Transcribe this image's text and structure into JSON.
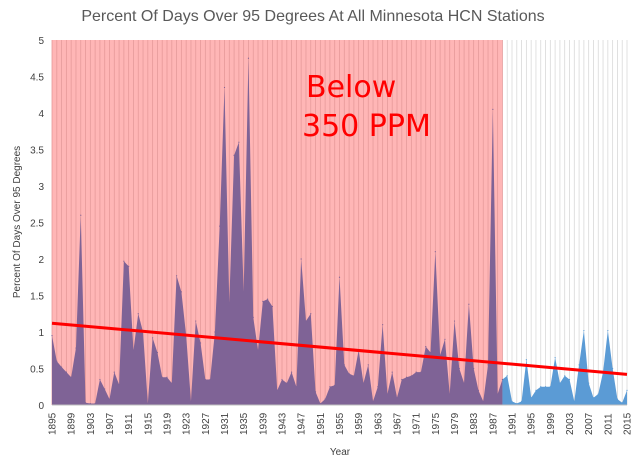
{
  "chart_data": {
    "type": "area",
    "title": "Percent Of Days Over 95 Degrees At All Minnesota HCN Stations",
    "xlabel": "Year",
    "ylabel": "Percent Of Days Over 95 Degrees",
    "ylim": [
      0,
      5
    ],
    "yticks": [
      "0",
      "0.5",
      "1",
      "1.5",
      "2",
      "2.5",
      "3",
      "3.5",
      "4",
      "4.5",
      "5"
    ],
    "xlim": [
      1895,
      2015
    ],
    "xticks": [
      "1895",
      "1899",
      "1903",
      "1907",
      "1911",
      "1915",
      "1919",
      "1923",
      "1927",
      "1931",
      "1935",
      "1939",
      "1943",
      "1947",
      "1951",
      "1955",
      "1959",
      "1963",
      "1967",
      "1971",
      "1975",
      "1979",
      "1983",
      "1987",
      "1991",
      "1995",
      "1999",
      "2003",
      "2007",
      "2011",
      "2015"
    ],
    "highlight_region": {
      "from": 1895,
      "to": 1989,
      "color": "#ffb6b6",
      "label": [
        "Below",
        "350 PPM"
      ]
    },
    "series": [
      {
        "name": "Percent of days over 95 degrees",
        "x_start": 1895,
        "values": [
          0.95,
          0.6,
          0.52,
          0.45,
          0.38,
          0.78,
          2.6,
          0.03,
          0.02,
          0.02,
          0.35,
          0.22,
          0.08,
          0.45,
          0.28,
          1.97,
          1.9,
          0.75,
          1.25,
          1.0,
          0.02,
          0.92,
          0.72,
          0.38,
          0.38,
          0.3,
          1.77,
          1.55,
          0.95,
          0.05,
          1.15,
          0.85,
          0.35,
          0.35,
          1.0,
          2.45,
          4.35,
          1.4,
          3.42,
          3.6,
          1.55,
          4.75,
          1.2,
          0.75,
          1.42,
          1.45,
          1.35,
          0.2,
          0.35,
          0.3,
          0.45,
          0.25,
          2.0,
          1.15,
          1.25,
          0.18,
          0.02,
          0.08,
          0.25,
          0.27,
          1.75,
          0.55,
          0.43,
          0.4,
          0.75,
          0.3,
          0.55,
          0.05,
          0.25,
          1.1,
          0.15,
          0.45,
          0.1,
          0.35,
          0.38,
          0.4,
          0.45,
          0.45,
          0.8,
          0.72,
          2.1,
          0.68,
          0.9,
          0.15,
          1.15,
          0.5,
          0.3,
          1.38,
          0.5,
          0.2,
          0.05,
          0.55,
          4.05,
          0.15,
          0.35,
          0.4,
          0.05,
          0.02,
          0.05,
          0.62,
          0.1,
          0.2,
          0.25,
          0.25,
          0.25,
          0.65,
          0.3,
          0.4,
          0.35,
          0.05,
          0.55,
          1.02,
          0.3,
          0.1,
          0.15,
          0.45,
          1.02,
          0.5,
          0.08,
          0.03,
          0.2
        ],
        "color_before": "#7f6396",
        "color_after": "#5b9bd5"
      }
    ],
    "trend_line": {
      "start": [
        1895,
        1.12
      ],
      "end": [
        2015,
        0.42
      ],
      "color": "#ff0000"
    }
  }
}
